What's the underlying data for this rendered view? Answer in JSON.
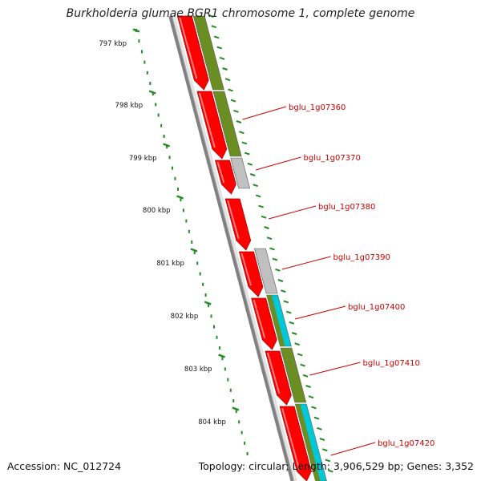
{
  "title": "Burkholderia glumae BGR1 chromosome 1, complete genome",
  "accession": "Accession: NC_012724",
  "summary": "Topology: circular; Length: 3,906,529 bp; Genes: 3,352",
  "colors": {
    "backbone": "#808080",
    "cds_red": "#ff0000",
    "cog_olive": "#6b8e23",
    "cog_gray": "#c0c0c0",
    "cog_cyan": "#00c8d8",
    "ticks": "#228b22",
    "gene_label": "#cc0000"
  },
  "ruler": {
    "ticks": [
      {
        "label": "797 kbp"
      },
      {
        "label": "798 kbp"
      },
      {
        "label": "799 kbp"
      },
      {
        "label": "800 kbp"
      },
      {
        "label": "801 kbp"
      },
      {
        "label": "802 kbp"
      },
      {
        "label": "803 kbp"
      },
      {
        "label": "804 kbp"
      }
    ]
  },
  "genes": [
    {
      "label": "bglu_1g07360"
    },
    {
      "label": "bglu_1g07370"
    },
    {
      "label": "bglu_1g07380"
    },
    {
      "label": "bglu_1g07390"
    },
    {
      "label": "bglu_1g07400"
    },
    {
      "label": "bglu_1g07410"
    },
    {
      "label": "bglu_1g07420"
    }
  ]
}
